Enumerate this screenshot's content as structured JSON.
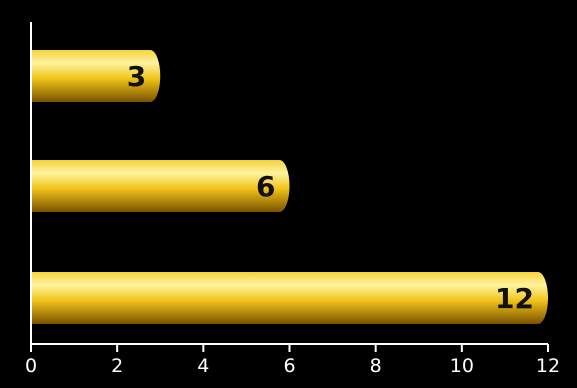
{
  "chart_data": {
    "type": "bar",
    "orientation": "horizontal",
    "values": [
      3,
      6,
      12
    ],
    "data_labels": [
      "3",
      "6",
      "12"
    ],
    "xlim": [
      0,
      12
    ],
    "x_ticks": [
      0,
      2,
      4,
      6,
      8,
      10,
      12
    ],
    "x_tick_labels": [
      "0",
      "2",
      "4",
      "6",
      "8",
      "10",
      "12"
    ],
    "grid": false,
    "colors": {
      "background": "#000000",
      "bar_light": "#fff3a0",
      "bar_mid": "#f0c419",
      "bar_dark": "#7a5200",
      "axis": "#ffffff",
      "label_text": "#111111"
    }
  }
}
